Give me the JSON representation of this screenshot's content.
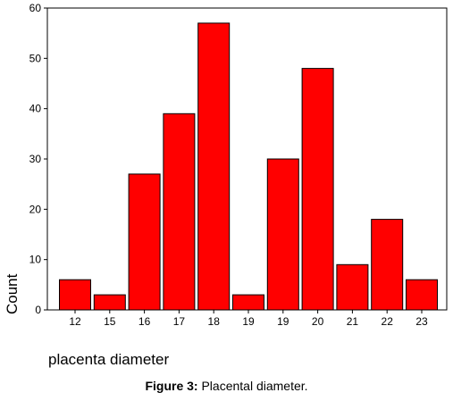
{
  "chart_data": {
    "type": "bar",
    "categories": [
      "12",
      "15",
      "16",
      "17",
      "18",
      "19",
      "19",
      "20",
      "21",
      "22",
      "23"
    ],
    "values": [
      6,
      3,
      27,
      39,
      57,
      3,
      30,
      48,
      9,
      18,
      6
    ],
    "xlabel": "placenta diameter",
    "ylabel": "Count",
    "ylim": [
      0,
      60
    ],
    "yticks": [
      "0",
      "10",
      "20",
      "30",
      "40",
      "50",
      "60"
    ],
    "grid": false,
    "bar_color": "#ff0000",
    "title": ""
  },
  "caption": {
    "label": "Figure 3:",
    "text": " Placental diameter."
  }
}
